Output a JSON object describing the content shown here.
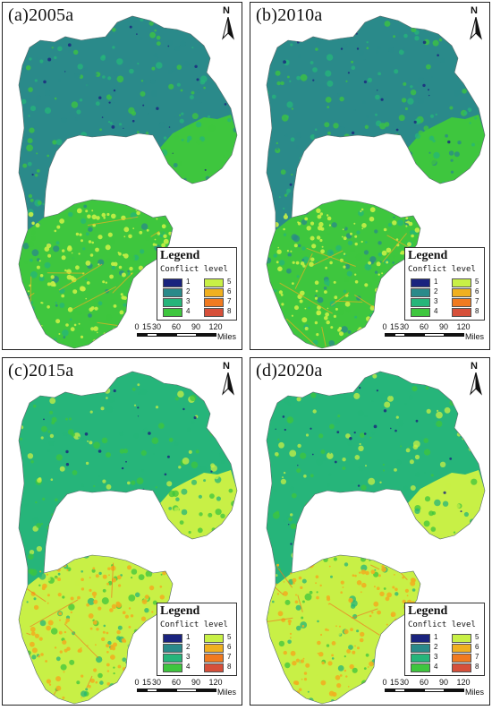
{
  "panels": [
    {
      "id": "a",
      "title": "(a)2005a",
      "lowland_level": 4,
      "hill_level": 2,
      "hotspot_level": 5
    },
    {
      "id": "b",
      "title": "(b)2010a",
      "lowland_level": 4,
      "hill_level": 2,
      "hotspot_level": 5
    },
    {
      "id": "c",
      "title": "(c)2015a",
      "lowland_level": 5,
      "hill_level": 3,
      "hotspot_level": 6
    },
    {
      "id": "d",
      "title": "(d)2020a",
      "lowland_level": 5,
      "hill_level": 3,
      "hotspot_level": 6
    }
  ],
  "north_arrow": {
    "label": "N"
  },
  "legend": {
    "title": "Legend",
    "subtitle": "Conflict level",
    "items": [
      {
        "label": "1",
        "color": "#1a237e"
      },
      {
        "label": "2",
        "color": "#2a8a8a"
      },
      {
        "label": "3",
        "color": "#26b57a"
      },
      {
        "label": "4",
        "color": "#3ec63e"
      },
      {
        "label": "5",
        "color": "#c8f046"
      },
      {
        "label": "6",
        "color": "#f0b020"
      },
      {
        "label": "7",
        "color": "#f07a20"
      },
      {
        "label": "8",
        "color": "#d6503a"
      }
    ]
  },
  "scale_bar": {
    "ticks": [
      "0",
      "15",
      "30",
      "60",
      "90",
      "120"
    ],
    "units": "Miles"
  }
}
